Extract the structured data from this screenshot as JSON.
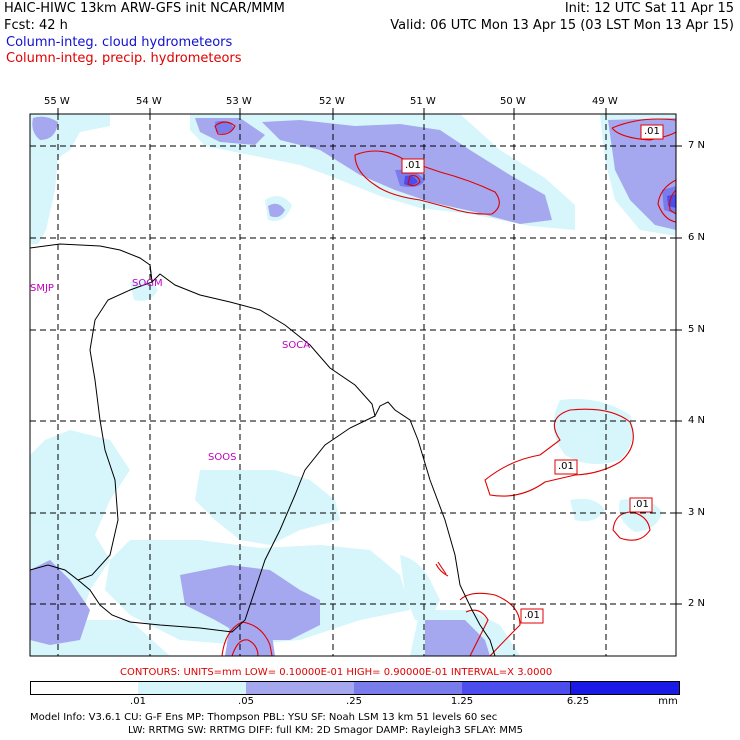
{
  "header": {
    "line1_left": "HAIC-HIWC 13km ARW-GFS init   NCAR/MMM",
    "line1_right": "Init: 12 UTC Sat 11 Apr 15",
    "line2_left": "Fcst:    42 h",
    "line2_right": "Valid: 06 UTC Mon 13 Apr 15 (03 LST Mon 13 Apr 15)",
    "line3": "Column-integ. cloud hydrometeors",
    "line4": "Column-integ. precip. hydrometeors"
  },
  "colors": {
    "cloud_text": "#1010d0",
    "precip_text": "#e00000",
    "station_text": "#c000c0",
    "level1": "#d6f6fb",
    "level2": "#a6a8ef",
    "level3": "#7a7cec",
    "level4": "#4b4dee",
    "level5": "#1a1ae6"
  },
  "map": {
    "lon_labels": [
      "55 W",
      "54 W",
      "53 W",
      "52 W",
      "51 W",
      "50 W",
      "49 W"
    ],
    "lat_labels": [
      "7 N",
      "6 N",
      "5 N",
      "4 N",
      "3 N",
      "2 N"
    ],
    "stations": [
      "SMJP",
      "SOGM",
      "SOCA",
      "SOOS"
    ],
    "contour_labels": [
      ".01",
      ".01",
      ".01",
      ".01",
      ".01"
    ]
  },
  "footer": {
    "contours": "CONTOURS:  UNITS=mm   LOW= 0.10000E-01   HIGH= 0.90000E-01   INTERVAL=X   3.0000",
    "colorbar_labels": [
      ".01",
      ".05",
      ".25",
      "1.25",
      "6.25",
      "mm"
    ],
    "model_info_1": "Model Info: V3.6.1     CU: G-F Ens  MP: Thompson     PBL: YSU        SF: Noah LSM      13 km     51 levels    60 sec",
    "model_info_2": "LW: RRTMG     SW: RRTMG   DIFF: full     KM: 2D Smagor  DAMP: Rayleigh3    SFLAY: MM5"
  }
}
